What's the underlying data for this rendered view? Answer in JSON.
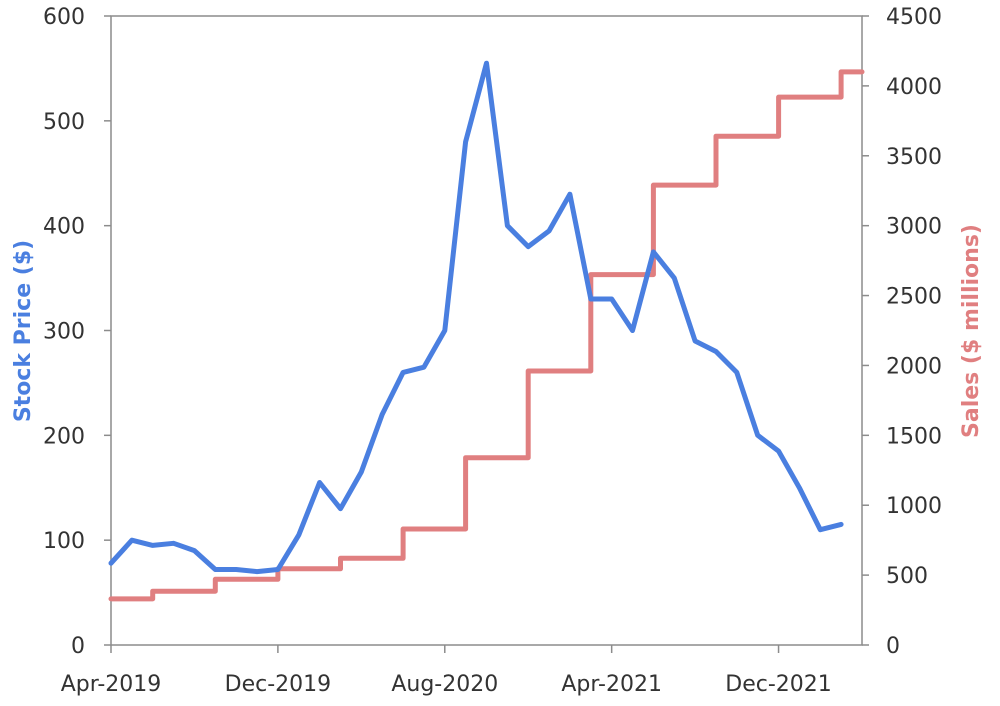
{
  "chart_data": {
    "type": "line",
    "title": "",
    "xlabel": "",
    "ylabel": "Stock Price ($)",
    "y2label": "Sales ($ millions)",
    "x_ticks": [
      "Apr-2019",
      "Dec-2019",
      "Aug-2020",
      "Apr-2021",
      "Dec-2021"
    ],
    "y_ticks": [
      "0",
      "100",
      "200",
      "300",
      "400",
      "500",
      "600"
    ],
    "y2_ticks": [
      "0",
      "500",
      "1000",
      "1500",
      "2000",
      "2500",
      "3000",
      "3500",
      "4000",
      "4500"
    ],
    "xlim": [
      "2019-04",
      "2022-04"
    ],
    "ylim": [
      0,
      600
    ],
    "y2lim": [
      0,
      4500
    ],
    "grid": false,
    "legend": "none",
    "colors": {
      "price": "#4a7fe0",
      "sales": "#e07f80",
      "axis_text": "#333333"
    },
    "series": [
      {
        "axis": "left",
        "style": "line",
        "x": [
          "2019-04",
          "2019-05",
          "2019-06",
          "2019-07",
          "2019-08",
          "2019-09",
          "2019-10",
          "2019-11",
          "2019-12",
          "2020-01",
          "2020-02",
          "2020-03",
          "2020-04",
          "2020-05",
          "2020-06",
          "2020-07",
          "2020-08",
          "2020-09",
          "2020-10",
          "2020-11",
          "2020-12",
          "2021-01",
          "2021-02",
          "2021-03",
          "2021-04",
          "2021-05",
          "2021-06",
          "2021-07",
          "2021-08",
          "2021-09",
          "2021-10",
          "2021-11",
          "2021-12",
          "2022-01",
          "2022-02",
          "2022-03"
        ],
        "values": [
          78,
          100,
          95,
          97,
          90,
          72,
          72,
          70,
          72,
          105,
          155,
          130,
          165,
          220,
          260,
          265,
          300,
          480,
          555,
          400,
          380,
          395,
          430,
          330,
          330,
          300,
          375,
          350,
          290,
          280,
          260,
          200,
          185,
          150,
          110,
          115
        ]
      },
      {
        "axis": "right",
        "style": "step",
        "x": [
          "2019-04",
          "2019-06",
          "2019-09",
          "2019-12",
          "2020-03",
          "2020-06",
          "2020-09",
          "2020-12",
          "2021-03",
          "2021-06",
          "2021-09",
          "2021-12",
          "2022-03",
          "2022-04"
        ],
        "values": [
          330,
          385,
          470,
          545,
          620,
          830,
          1340,
          1960,
          2650,
          3290,
          3640,
          3920,
          4100,
          4100
        ]
      }
    ]
  }
}
